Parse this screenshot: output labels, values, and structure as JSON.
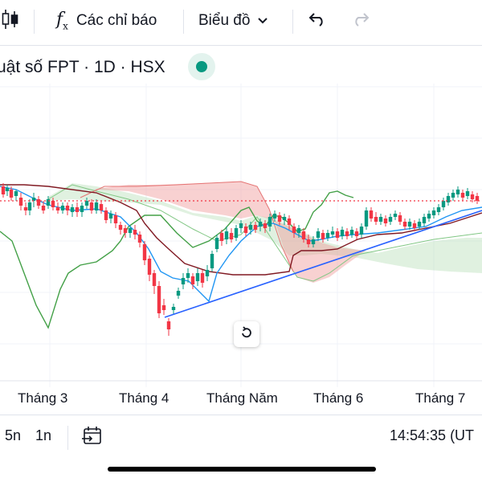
{
  "toolbar": {
    "candles_icon": "candlestick-icon",
    "indicators_label": "Các chỉ báo",
    "chart_type_label": "Biểu đồ",
    "undo_icon": "undo-icon",
    "redo_icon": "redo-icon"
  },
  "symbol": {
    "title": "uật số FPT · 1D · HSX",
    "status_color": "#089981"
  },
  "chart": {
    "x_labels": [
      "Tháng 3",
      "Tháng 4",
      "Tháng Năm",
      "Tháng 6",
      "Tháng 7"
    ],
    "colors": {
      "up": "#089981",
      "down": "#f23645",
      "tenkan": "#2196f3",
      "kijun": "#801922",
      "lagging": "#43a047",
      "cloud_bull": "#a5d6a7",
      "cloud_bear": "#ef9a9a",
      "trendline": "#2962ff"
    }
  },
  "bottom": {
    "range_5n": "5n",
    "range_1n": "1n",
    "goto_icon": "go-to-date-icon",
    "time": "14:54:35 (UT"
  }
}
